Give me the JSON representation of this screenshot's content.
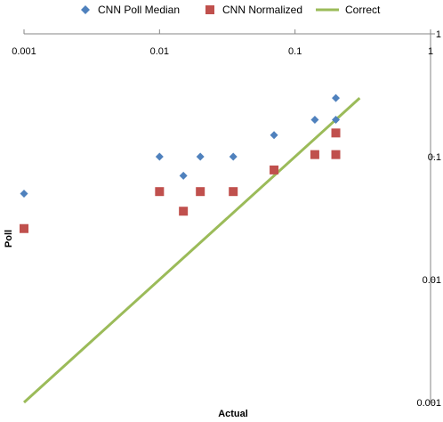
{
  "chart_data": {
    "type": "scatter",
    "xscale": "log",
    "yscale": "log",
    "xlim": [
      0.001,
      1
    ],
    "ylim": [
      0.001,
      1
    ],
    "xlabel": "Actual",
    "ylabel": "Poll",
    "x_ticks": [
      "0.001",
      "0.01",
      "0.1",
      "1"
    ],
    "y_ticks": [
      "0.001",
      "0.01",
      "0.1",
      "1"
    ],
    "legend_position": "top",
    "grid": false,
    "series": [
      {
        "name": "CNN Poll Median",
        "marker": "diamond",
        "color": "#4F81BD",
        "points": [
          {
            "x": 0.001,
            "y": 0.05
          },
          {
            "x": 0.01,
            "y": 0.1
          },
          {
            "x": 0.015,
            "y": 0.07
          },
          {
            "x": 0.02,
            "y": 0.1
          },
          {
            "x": 0.035,
            "y": 0.1
          },
          {
            "x": 0.07,
            "y": 0.15
          },
          {
            "x": 0.14,
            "y": 0.2
          },
          {
            "x": 0.2,
            "y": 0.3
          },
          {
            "x": 0.2,
            "y": 0.2
          }
        ]
      },
      {
        "name": "CNN Normalized",
        "marker": "square",
        "color": "#C0504D",
        "points": [
          {
            "x": 0.001,
            "y": 0.026
          },
          {
            "x": 0.01,
            "y": 0.052
          },
          {
            "x": 0.015,
            "y": 0.036
          },
          {
            "x": 0.02,
            "y": 0.052
          },
          {
            "x": 0.035,
            "y": 0.052
          },
          {
            "x": 0.07,
            "y": 0.078
          },
          {
            "x": 0.14,
            "y": 0.104
          },
          {
            "x": 0.2,
            "y": 0.156
          },
          {
            "x": 0.2,
            "y": 0.104
          }
        ]
      },
      {
        "name": "Correct",
        "marker": "line",
        "color": "#9BBB59",
        "points": [
          {
            "x": 0.001,
            "y": 0.001
          },
          {
            "x": 0.3,
            "y": 0.3
          }
        ]
      }
    ]
  }
}
